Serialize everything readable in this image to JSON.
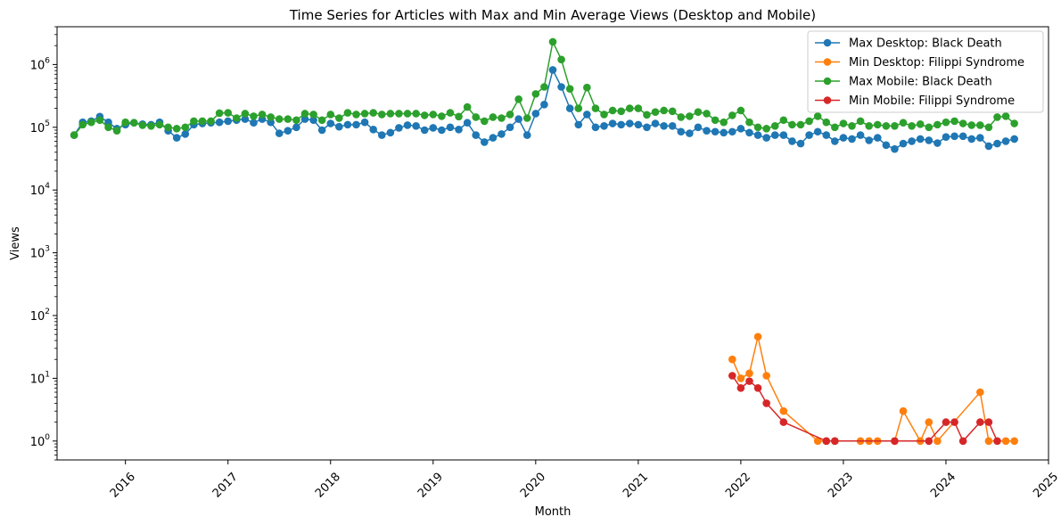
{
  "chart_data": {
    "type": "line",
    "title": "Time Series for Articles with Max and Min Average Views (Desktop and Mobile)",
    "xlabel": "Month",
    "ylabel": "Views",
    "yscale": "log",
    "ylim": [
      0.5,
      4000000
    ],
    "xlim": [
      "2015-05",
      "2025-01"
    ],
    "grid": false,
    "legend_position": "top-right",
    "x_ticks": [
      "2016",
      "2017",
      "2018",
      "2019",
      "2020",
      "2021",
      "2022",
      "2023",
      "2024",
      "2025"
    ],
    "y_ticks": [
      {
        "value": 1,
        "base": "10",
        "exp": "0"
      },
      {
        "value": 10,
        "base": "10",
        "exp": "1"
      },
      {
        "value": 100,
        "base": "10",
        "exp": "2"
      },
      {
        "value": 1000,
        "base": "10",
        "exp": "3"
      },
      {
        "value": 10000,
        "base": "10",
        "exp": "4"
      },
      {
        "value": 100000,
        "base": "10",
        "exp": "5"
      },
      {
        "value": 1000000,
        "base": "10",
        "exp": "6"
      }
    ],
    "series": [
      {
        "name": "Max Desktop: Black Death",
        "color": "#1f77b4",
        "x": [
          "2015-07",
          "2015-08",
          "2015-09",
          "2015-10",
          "2015-11",
          "2015-12",
          "2016-01",
          "2016-02",
          "2016-03",
          "2016-04",
          "2016-05",
          "2016-06",
          "2016-07",
          "2016-08",
          "2016-09",
          "2016-10",
          "2016-11",
          "2016-12",
          "2017-01",
          "2017-02",
          "2017-03",
          "2017-04",
          "2017-05",
          "2017-06",
          "2017-07",
          "2017-08",
          "2017-09",
          "2017-10",
          "2017-11",
          "2017-12",
          "2018-01",
          "2018-02",
          "2018-03",
          "2018-04",
          "2018-05",
          "2018-06",
          "2018-07",
          "2018-08",
          "2018-09",
          "2018-10",
          "2018-11",
          "2018-12",
          "2019-01",
          "2019-02",
          "2019-03",
          "2019-04",
          "2019-05",
          "2019-06",
          "2019-07",
          "2019-08",
          "2019-09",
          "2019-10",
          "2019-11",
          "2019-12",
          "2020-01",
          "2020-02",
          "2020-03",
          "2020-04",
          "2020-05",
          "2020-06",
          "2020-07",
          "2020-08",
          "2020-09",
          "2020-10",
          "2020-11",
          "2020-12",
          "2021-01",
          "2021-02",
          "2021-03",
          "2021-04",
          "2021-05",
          "2021-06",
          "2021-07",
          "2021-08",
          "2021-09",
          "2021-10",
          "2021-11",
          "2021-12",
          "2022-01",
          "2022-02",
          "2022-03",
          "2022-04",
          "2022-05",
          "2022-06",
          "2022-07",
          "2022-08",
          "2022-09",
          "2022-10",
          "2022-11",
          "2022-12",
          "2023-01",
          "2023-02",
          "2023-03",
          "2023-04",
          "2023-05",
          "2023-06",
          "2023-07",
          "2023-08",
          "2023-09",
          "2023-10",
          "2023-11",
          "2023-12",
          "2024-01",
          "2024-02",
          "2024-03",
          "2024-04",
          "2024-05",
          "2024-06",
          "2024-07",
          "2024-08",
          "2024-09"
        ],
        "y": [
          75000,
          120000,
          125000,
          148000,
          120000,
          95000,
          110000,
          118000,
          112000,
          110000,
          120000,
          88000,
          68000,
          78000,
          110000,
          115000,
          118000,
          120000,
          125000,
          130000,
          135000,
          118000,
          135000,
          120000,
          80000,
          88000,
          100000,
          135000,
          130000,
          90000,
          115000,
          102000,
          110000,
          110000,
          120000,
          92000,
          75000,
          82000,
          98000,
          108000,
          105000,
          90000,
          98000,
          90000,
          100000,
          92000,
          118000,
          75000,
          58000,
          68000,
          78000,
          100000,
          135000,
          75000,
          165000,
          230000,
          820000,
          440000,
          200000,
          110000,
          160000,
          100000,
          105000,
          115000,
          110000,
          115000,
          110000,
          100000,
          115000,
          105000,
          105000,
          85000,
          80000,
          100000,
          88000,
          85000,
          82000,
          85000,
          95000,
          82000,
          75000,
          68000,
          75000,
          75000,
          60000,
          55000,
          75000,
          85000,
          75000,
          60000,
          68000,
          65000,
          75000,
          62000,
          68000,
          52000,
          45000,
          55000,
          60000,
          65000,
          62000,
          56000,
          70000,
          72000,
          72000,
          65000,
          68000,
          50000,
          55000,
          60000,
          65000
        ]
      },
      {
        "name": "Min Desktop: Filippi Syndrome",
        "color": "#ff7f0e",
        "x": [
          "2021-12",
          "2022-01",
          "2022-02",
          "2022-03",
          "2022-04",
          "2022-06",
          "2022-10",
          "2022-11",
          "2022-12",
          "2023-03",
          "2023-04",
          "2023-05",
          "2023-07",
          "2023-08",
          "2023-10",
          "2023-11",
          "2023-12",
          "2024-05",
          "2024-06",
          "2024-08",
          "2024-09"
        ],
        "y": [
          20,
          10,
          12,
          46,
          11,
          3,
          1,
          1,
          1,
          1,
          1,
          1,
          1,
          3,
          1,
          2,
          1,
          6,
          1,
          1,
          1
        ]
      },
      {
        "name": "Max Mobile: Black Death",
        "color": "#2ca02c",
        "x": [
          "2015-07",
          "2015-08",
          "2015-09",
          "2015-10",
          "2015-11",
          "2015-12",
          "2016-01",
          "2016-02",
          "2016-03",
          "2016-04",
          "2016-05",
          "2016-06",
          "2016-07",
          "2016-08",
          "2016-09",
          "2016-10",
          "2016-11",
          "2016-12",
          "2017-01",
          "2017-02",
          "2017-03",
          "2017-04",
          "2017-05",
          "2017-06",
          "2017-07",
          "2017-08",
          "2017-09",
          "2017-10",
          "2017-11",
          "2017-12",
          "2018-01",
          "2018-02",
          "2018-03",
          "2018-04",
          "2018-05",
          "2018-06",
          "2018-07",
          "2018-08",
          "2018-09",
          "2018-10",
          "2018-11",
          "2018-12",
          "2019-01",
          "2019-02",
          "2019-03",
          "2019-04",
          "2019-05",
          "2019-06",
          "2019-07",
          "2019-08",
          "2019-09",
          "2019-10",
          "2019-11",
          "2019-12",
          "2020-01",
          "2020-02",
          "2020-03",
          "2020-04",
          "2020-05",
          "2020-06",
          "2020-07",
          "2020-08",
          "2020-09",
          "2020-10",
          "2020-11",
          "2020-12",
          "2021-01",
          "2021-02",
          "2021-03",
          "2021-04",
          "2021-05",
          "2021-06",
          "2021-07",
          "2021-08",
          "2021-09",
          "2021-10",
          "2021-11",
          "2021-12",
          "2022-01",
          "2022-02",
          "2022-03",
          "2022-04",
          "2022-05",
          "2022-06",
          "2022-07",
          "2022-08",
          "2022-09",
          "2022-10",
          "2022-11",
          "2022-12",
          "2023-01",
          "2023-02",
          "2023-03",
          "2023-04",
          "2023-05",
          "2023-06",
          "2023-07",
          "2023-08",
          "2023-09",
          "2023-10",
          "2023-11",
          "2023-12",
          "2024-01",
          "2024-02",
          "2024-03",
          "2024-04",
          "2024-05",
          "2024-06",
          "2024-07",
          "2024-08",
          "2024-09"
        ],
        "y": [
          75000,
          110000,
          120000,
          130000,
          100000,
          88000,
          120000,
          118000,
          108000,
          105000,
          110000,
          100000,
          95000,
          100000,
          125000,
          125000,
          125000,
          168000,
          170000,
          140000,
          165000,
          150000,
          160000,
          145000,
          135000,
          135000,
          130000,
          165000,
          160000,
          130000,
          160000,
          140000,
          170000,
          160000,
          165000,
          170000,
          160000,
          165000,
          165000,
          165000,
          165000,
          155000,
          160000,
          150000,
          170000,
          148000,
          210000,
          145000,
          125000,
          145000,
          140000,
          160000,
          280000,
          140000,
          340000,
          440000,
          2300000,
          1200000,
          410000,
          200000,
          430000,
          200000,
          160000,
          185000,
          180000,
          200000,
          200000,
          158000,
          175000,
          185000,
          180000,
          145000,
          150000,
          175000,
          165000,
          130000,
          120000,
          155000,
          185000,
          120000,
          100000,
          95000,
          105000,
          130000,
          110000,
          110000,
          125000,
          150000,
          120000,
          100000,
          115000,
          105000,
          125000,
          105000,
          110000,
          105000,
          105000,
          118000,
          105000,
          112000,
          100000,
          110000,
          120000,
          125000,
          115000,
          108000,
          108000,
          100000,
          145000,
          150000,
          115000
        ]
      },
      {
        "name": "Min Mobile: Filippi Syndrome",
        "color": "#d62728",
        "x": [
          "2021-12",
          "2022-01",
          "2022-02",
          "2022-03",
          "2022-04",
          "2022-06",
          "2022-11",
          "2022-12",
          "2023-07",
          "2023-11",
          "2024-01",
          "2024-02",
          "2024-03",
          "2024-05",
          "2024-06",
          "2024-07"
        ],
        "y": [
          11,
          7,
          9,
          7,
          4,
          2,
          1,
          1,
          1,
          1,
          2,
          2,
          1,
          2,
          2,
          1
        ]
      }
    ]
  }
}
